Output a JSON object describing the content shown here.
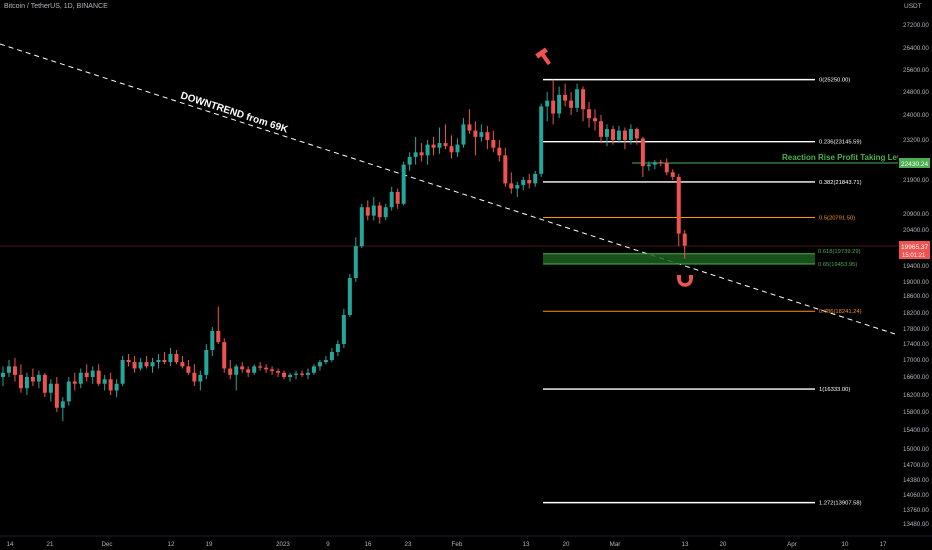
{
  "header": {
    "symbol_title": "Bitcoin / TetherUS, 1D, BINANCE",
    "currency": "USDT"
  },
  "price_axis": {
    "labels": [
      "27200.00",
      "26400.00",
      "25600.00",
      "24800.00",
      "24000.00",
      "23200.00",
      "21900.00",
      "20900.00",
      "20400.00",
      "19400.00",
      "19000.00",
      "18600.00",
      "18200.00",
      "17800.00",
      "17400.00",
      "17000.00",
      "16600.00",
      "16200.00",
      "15800.00",
      "15400.00",
      "15000.00",
      "14700.00",
      "14380.00",
      "14060.00",
      "13760.00",
      "13480.00"
    ],
    "current_price": "19965.37",
    "countdown": "15:01:21",
    "reaction_price": "22430.24"
  },
  "time_axis": {
    "labels": [
      "14",
      "21",
      "Dec",
      "12",
      "19",
      "2023",
      "9",
      "16",
      "23",
      "Feb",
      "13",
      "20",
      "Mar",
      "13",
      "20",
      "Apr",
      "10",
      "17"
    ]
  },
  "annotations": {
    "downtrend_label": "DOWNTREND from 69K",
    "reaction_label": "Reaction Rise Profit Taking Level",
    "markers": [
      "hammer-icon",
      "magnet-icon"
    ]
  },
  "fib_levels": [
    {
      "label": "0(25250.00)",
      "color": "#ffffff"
    },
    {
      "label": "0.236(23145.59)",
      "color": "#ffffff"
    },
    {
      "label": "0.382(21843.71)",
      "color": "#ffffff"
    },
    {
      "label": "0.5(20791.50)",
      "color": "#ff9800"
    },
    {
      "label": "0.618(19739.29)",
      "color": "#4caf50"
    },
    {
      "label": "0.65(19453.95)",
      "color": "#4caf50"
    },
    {
      "label": "0.786(18241.24)",
      "color": "#ff9800"
    },
    {
      "label": "1(16333.00)",
      "color": "#ffffff"
    },
    {
      "label": "1.272(13907.58)",
      "color": "#ffffff"
    }
  ],
  "colors": {
    "up": "#26a69a",
    "down": "#ef5350",
    "trend_line": "#ffffff",
    "reaction_line": "#4caf50",
    "price_line": "#ef5350"
  },
  "chart_data": {
    "type": "candlestick",
    "title": "Bitcoin / TetherUS, 1D, BINANCE",
    "unit": "USDT",
    "y_axis_labels": [
      27200,
      26400,
      25600,
      24800,
      24000,
      23200,
      21900,
      20900,
      20400,
      19400,
      19000,
      18600,
      18200,
      17800,
      17400,
      17000,
      16600,
      16200,
      15800,
      15400,
      15000,
      14700,
      14380,
      14060,
      13760,
      13480
    ],
    "current_price": 19965.37,
    "reaction_rise_level": 22430.24,
    "fib_levels": [
      {
        "ratio": 0,
        "price": 25250.0
      },
      {
        "ratio": 0.236,
        "price": 23145.59
      },
      {
        "ratio": 0.382,
        "price": 21843.71
      },
      {
        "ratio": 0.5,
        "price": 20791.5
      },
      {
        "ratio": 0.618,
        "price": 19739.29
      },
      {
        "ratio": 0.65,
        "price": 19453.95
      },
      {
        "ratio": 0.786,
        "price": 18241.24
      },
      {
        "ratio": 1,
        "price": 16333.0
      },
      {
        "ratio": 1.272,
        "price": 13907.58
      }
    ],
    "candles": [
      [
        16600,
        16850,
        16400,
        16700
      ],
      [
        16700,
        17000,
        16600,
        16850
      ],
      [
        16850,
        17050,
        16500,
        16650
      ],
      [
        16650,
        16900,
        16250,
        16350
      ],
      [
        16350,
        16700,
        16200,
        16600
      ],
      [
        16600,
        16800,
        16400,
        16500
      ],
      [
        16500,
        16750,
        16350,
        16650
      ],
      [
        16650,
        16700,
        16150,
        16250
      ],
      [
        16250,
        16550,
        16050,
        16450
      ],
      [
        16450,
        16600,
        15800,
        15900
      ],
      [
        15900,
        16150,
        15600,
        16050
      ],
      [
        16050,
        16600,
        15950,
        16500
      ],
      [
        16500,
        16700,
        16300,
        16450
      ],
      [
        16450,
        16800,
        16350,
        16700
      ],
      [
        16700,
        16900,
        16500,
        16600
      ],
      [
        16600,
        16850,
        16450,
        16750
      ],
      [
        16750,
        16900,
        16400,
        16450
      ],
      [
        16450,
        16650,
        16300,
        16550
      ],
      [
        16550,
        16700,
        16200,
        16300
      ],
      [
        16300,
        16550,
        16150,
        16450
      ],
      [
        16450,
        17100,
        16400,
        17000
      ],
      [
        17000,
        17150,
        16850,
        16950
      ],
      [
        16950,
        17100,
        16700,
        16800
      ],
      [
        16800,
        17050,
        16750,
        16950
      ],
      [
        16950,
        17100,
        16800,
        16850
      ],
      [
        16850,
        17050,
        16700,
        16950
      ],
      [
        16950,
        17150,
        16800,
        17000
      ],
      [
        17000,
        17200,
        16900,
        16950
      ],
      [
        16950,
        17300,
        16850,
        17150
      ],
      [
        17150,
        17250,
        16900,
        16950
      ],
      [
        16950,
        17100,
        16800,
        16850
      ],
      [
        16850,
        17000,
        16650,
        16700
      ],
      [
        16700,
        16900,
        16400,
        16500
      ],
      [
        16500,
        16750,
        16300,
        16650
      ],
      [
        16650,
        17400,
        16550,
        17250
      ],
      [
        17250,
        17850,
        17100,
        17750
      ],
      [
        17750,
        18350,
        17400,
        17450
      ],
      [
        17450,
        17550,
        16700,
        16800
      ],
      [
        16800,
        17000,
        16550,
        16650
      ],
      [
        16650,
        16900,
        16300,
        16850
      ],
      [
        16850,
        16950,
        16700,
        16780
      ],
      [
        16780,
        16850,
        16600,
        16700
      ],
      [
        16700,
        16900,
        16650,
        16850
      ],
      [
        16850,
        16950,
        16750,
        16820
      ],
      [
        16820,
        16900,
        16700,
        16780
      ],
      [
        16780,
        16850,
        16650,
        16740
      ],
      [
        16740,
        16800,
        16600,
        16700
      ],
      [
        16700,
        16750,
        16550,
        16600
      ],
      [
        16600,
        16700,
        16500,
        16650
      ],
      [
        16650,
        16750,
        16550,
        16680
      ],
      [
        16680,
        16750,
        16600,
        16650
      ],
      [
        16650,
        16800,
        16550,
        16700
      ],
      [
        16700,
        16900,
        16650,
        16850
      ],
      [
        16850,
        17000,
        16750,
        16950
      ],
      [
        16950,
        17100,
        16900,
        17000
      ],
      [
        17000,
        17300,
        16950,
        17200
      ],
      [
        17200,
        17500,
        17100,
        17400
      ],
      [
        17400,
        18300,
        17300,
        18150
      ],
      [
        18150,
        19200,
        18100,
        19100
      ],
      [
        19100,
        20200,
        19000,
        19950
      ],
      [
        19950,
        21200,
        19900,
        21100
      ],
      [
        21100,
        21300,
        20700,
        20850
      ],
      [
        20850,
        21400,
        20700,
        21150
      ],
      [
        21150,
        21250,
        20600,
        20800
      ],
      [
        20800,
        21200,
        20700,
        21100
      ],
      [
        21100,
        21700,
        21000,
        21550
      ],
      [
        21550,
        21650,
        21050,
        21200
      ],
      [
        21200,
        22500,
        21150,
        22400
      ],
      [
        22400,
        22800,
        22200,
        22650
      ],
      [
        22650,
        23300,
        22400,
        22800
      ],
      [
        22800,
        23100,
        22500,
        22700
      ],
      [
        22700,
        23200,
        22400,
        23050
      ],
      [
        23050,
        23300,
        22700,
        22950
      ],
      [
        22950,
        23600,
        22750,
        23100
      ],
      [
        23100,
        23700,
        22900,
        23000
      ],
      [
        23000,
        23350,
        22600,
        22800
      ],
      [
        22800,
        23250,
        22650,
        23050
      ],
      [
        23050,
        23900,
        22950,
        23700
      ],
      [
        23700,
        24200,
        23400,
        23500
      ],
      [
        23500,
        23800,
        22700,
        23300
      ],
      [
        23300,
        23700,
        23150,
        23450
      ],
      [
        23450,
        23650,
        22900,
        23200
      ],
      [
        23200,
        23500,
        22800,
        22950
      ],
      [
        22950,
        23200,
        22500,
        22700
      ],
      [
        22700,
        22950,
        21700,
        21800
      ],
      [
        21800,
        22150,
        21500,
        21650
      ],
      [
        21650,
        21850,
        21400,
        21750
      ],
      [
        21750,
        22000,
        21600,
        21900
      ],
      [
        21900,
        22100,
        21650,
        21800
      ],
      [
        21800,
        22200,
        21700,
        22100
      ],
      [
        22100,
        24400,
        22000,
        24300
      ],
      [
        24300,
        24800,
        23800,
        24500
      ],
      [
        24500,
        25250,
        23700,
        24050
      ],
      [
        24050,
        25000,
        23900,
        24700
      ],
      [
        24700,
        25100,
        24300,
        24500
      ],
      [
        24500,
        24800,
        24000,
        24250
      ],
      [
        24250,
        25100,
        24100,
        24900
      ],
      [
        24900,
        25000,
        23800,
        24200
      ],
      [
        24200,
        24450,
        23600,
        23900
      ],
      [
        23900,
        24200,
        23500,
        23800
      ],
      [
        23800,
        24000,
        23100,
        23300
      ],
      [
        23300,
        23700,
        23000,
        23550
      ],
      [
        23550,
        23650,
        23050,
        23200
      ],
      [
        23200,
        23650,
        23100,
        23500
      ],
      [
        23500,
        23600,
        22900,
        23200
      ],
      [
        23200,
        23700,
        23050,
        23550
      ],
      [
        23550,
        23600,
        23050,
        23250
      ],
      [
        23250,
        23300,
        22000,
        22350
      ],
      [
        22350,
        22500,
        22200,
        22400
      ],
      [
        22400,
        22550,
        22250,
        22480
      ],
      [
        22480,
        22560,
        22350,
        22450
      ],
      [
        22450,
        22600,
        22050,
        22150
      ],
      [
        22150,
        22250,
        21900,
        22000
      ],
      [
        22000,
        22100,
        19950,
        20300
      ],
      [
        20300,
        20400,
        19600,
        19965.37
      ]
    ]
  }
}
